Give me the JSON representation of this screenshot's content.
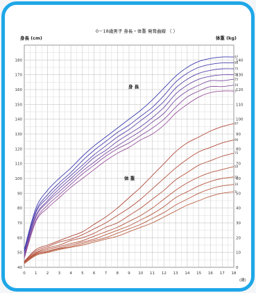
{
  "chart_data": {
    "type": "line",
    "title": "0－18歳男子 身長・体重 発育曲線 （ ）",
    "ylabel_left": "身長 (cm)",
    "ylabel_right": "体重 (kg)",
    "xlabel_unit": "(歳)",
    "annotations": {
      "height": "身 長",
      "weight": "体 重"
    },
    "x_ticks": [
      0,
      1,
      2,
      3,
      4,
      5,
      6,
      7,
      8,
      9,
      10,
      11,
      12,
      13,
      14,
      15,
      16,
      17,
      18
    ],
    "xlim": [
      0,
      18
    ],
    "y_left": {
      "lim": [
        40,
        190
      ],
      "ticks": [
        40,
        50,
        60,
        70,
        80,
        90,
        100,
        110,
        120,
        130,
        140,
        150,
        160,
        170,
        180
      ]
    },
    "y_right": {
      "lim": [
        0,
        150
      ],
      "ticks": [
        0,
        10,
        20,
        30,
        40,
        50,
        60,
        70,
        80,
        90,
        100,
        110,
        120,
        130,
        140
      ]
    },
    "grid": true,
    "series": [
      {
        "name": "97",
        "group": "height",
        "color": "#3a3ab0",
        "x": [
          0,
          1,
          2,
          3,
          4,
          5,
          6,
          7,
          8,
          9,
          10,
          11,
          12,
          13,
          14,
          15,
          16,
          17,
          18
        ],
        "y": [
          52,
          80,
          92,
          100,
          107,
          115,
          122,
          128,
          134,
          140,
          146,
          153,
          161,
          169,
          175,
          179,
          181,
          182,
          182
        ]
      },
      {
        "name": "90",
        "group": "height",
        "color": "#4a3fae",
        "x": [
          0,
          1,
          2,
          3,
          4,
          5,
          6,
          7,
          8,
          9,
          10,
          11,
          12,
          13,
          14,
          15,
          16,
          17,
          18
        ],
        "y": [
          51,
          78,
          89,
          97,
          104,
          112,
          119,
          125,
          131,
          136,
          142,
          148,
          156,
          165,
          171,
          175,
          177,
          178,
          178
        ]
      },
      {
        "name": "75",
        "group": "height",
        "color": "#5a44ac",
        "x": [
          0,
          1,
          2,
          3,
          4,
          5,
          6,
          7,
          8,
          9,
          10,
          11,
          12,
          13,
          14,
          15,
          16,
          17,
          18
        ],
        "y": [
          50,
          77,
          87,
          95,
          102,
          109,
          116,
          122,
          128,
          133,
          139,
          145,
          152,
          161,
          167,
          171,
          173,
          174,
          174
        ]
      },
      {
        "name": "50",
        "group": "height",
        "color": "#6a48a8",
        "x": [
          0,
          1,
          2,
          3,
          4,
          5,
          6,
          7,
          8,
          9,
          10,
          11,
          12,
          13,
          14,
          15,
          16,
          17,
          18
        ],
        "y": [
          49,
          75,
          85,
          93,
          100,
          107,
          114,
          119,
          125,
          130,
          135,
          141,
          148,
          157,
          163,
          167,
          169,
          170,
          170
        ]
      },
      {
        "name": "25",
        "group": "height",
        "color": "#7a4ca4",
        "x": [
          0,
          1,
          2,
          3,
          4,
          5,
          6,
          7,
          8,
          9,
          10,
          11,
          12,
          13,
          14,
          15,
          16,
          17,
          18
        ],
        "y": [
          48,
          74,
          84,
          91,
          98,
          105,
          111,
          117,
          122,
          127,
          132,
          138,
          144,
          153,
          159,
          163,
          166,
          166,
          167
        ]
      },
      {
        "name": "10",
        "group": "height",
        "color": "#8a50a0",
        "x": [
          0,
          1,
          2,
          3,
          4,
          5,
          6,
          7,
          8,
          9,
          10,
          11,
          12,
          13,
          14,
          15,
          16,
          17,
          18
        ],
        "y": [
          47,
          72,
          82,
          89,
          96,
          103,
          109,
          115,
          120,
          124,
          129,
          134,
          140,
          148,
          155,
          159,
          162,
          162,
          163
        ]
      },
      {
        "name": "3",
        "group": "height",
        "color": "#9a549c",
        "x": [
          0,
          1,
          2,
          3,
          4,
          5,
          6,
          7,
          8,
          9,
          10,
          11,
          12,
          13,
          14,
          15,
          16,
          17,
          18
        ],
        "y": [
          46,
          71,
          80,
          87,
          94,
          100,
          106,
          112,
          117,
          121,
          126,
          130,
          136,
          144,
          150,
          155,
          158,
          159,
          159
        ]
      },
      {
        "name": "97",
        "group": "weight",
        "color": "#b04a3a",
        "x": [
          0,
          1,
          2,
          3,
          4,
          5,
          6,
          7,
          8,
          9,
          10,
          11,
          12,
          13,
          14,
          15,
          16,
          17,
          18
        ],
        "y": [
          4,
          12,
          15,
          18,
          21,
          24,
          29,
          34,
          40,
          47,
          54,
          62,
          70,
          78,
          84,
          88,
          92,
          95,
          97
        ]
      },
      {
        "name": "90",
        "group": "weight",
        "color": "#b24e3c",
        "x": [
          0,
          1,
          2,
          3,
          4,
          5,
          6,
          7,
          8,
          9,
          10,
          11,
          12,
          13,
          14,
          15,
          16,
          17,
          18
        ],
        "y": [
          3.8,
          11,
          14,
          17,
          19,
          22,
          26,
          30,
          35,
          40,
          46,
          53,
          60,
          67,
          73,
          78,
          81,
          84,
          86
        ]
      },
      {
        "name": "75",
        "group": "weight",
        "color": "#b4523e",
        "x": [
          0,
          1,
          2,
          3,
          4,
          5,
          6,
          7,
          8,
          9,
          10,
          11,
          12,
          13,
          14,
          15,
          16,
          17,
          18
        ],
        "y": [
          3.5,
          10,
          13,
          15,
          18,
          20,
          23,
          27,
          30,
          35,
          40,
          46,
          52,
          59,
          64,
          69,
          72,
          75,
          77
        ]
      },
      {
        "name": "50",
        "group": "weight",
        "color": "#b65640",
        "x": [
          0,
          1,
          2,
          3,
          4,
          5,
          6,
          7,
          8,
          9,
          10,
          11,
          12,
          13,
          14,
          15,
          16,
          17,
          18
        ],
        "y": [
          3.2,
          9.5,
          12,
          14,
          16,
          18,
          21,
          24,
          27,
          31,
          35,
          40,
          46,
          52,
          57,
          61,
          64,
          66,
          68
        ]
      },
      {
        "name": "25",
        "group": "weight",
        "color": "#b85a42",
        "x": [
          0,
          1,
          2,
          3,
          4,
          5,
          6,
          7,
          8,
          9,
          10,
          11,
          12,
          13,
          14,
          15,
          16,
          17,
          18
        ],
        "y": [
          3,
          9,
          11,
          13,
          15,
          17,
          19,
          22,
          25,
          28,
          32,
          36,
          41,
          47,
          51,
          55,
          58,
          60,
          61
        ]
      },
      {
        "name": "10",
        "group": "weight",
        "color": "#ba5e44",
        "x": [
          0,
          1,
          2,
          3,
          4,
          5,
          6,
          7,
          8,
          9,
          10,
          11,
          12,
          13,
          14,
          15,
          16,
          17,
          18
        ],
        "y": [
          2.8,
          8.5,
          10.5,
          12.5,
          14,
          16,
          18,
          20,
          23,
          26,
          29,
          33,
          37,
          42,
          46,
          50,
          53,
          55,
          56
        ]
      },
      {
        "name": "3",
        "group": "weight",
        "color": "#bc6246",
        "x": [
          0,
          1,
          2,
          3,
          4,
          5,
          6,
          7,
          8,
          9,
          10,
          11,
          12,
          13,
          14,
          15,
          16,
          17,
          18
        ],
        "y": [
          2.5,
          8,
          10,
          12,
          13.5,
          15,
          17,
          19,
          21,
          24,
          27,
          30,
          34,
          38,
          42,
          45,
          48,
          50,
          51
        ]
      }
    ]
  }
}
